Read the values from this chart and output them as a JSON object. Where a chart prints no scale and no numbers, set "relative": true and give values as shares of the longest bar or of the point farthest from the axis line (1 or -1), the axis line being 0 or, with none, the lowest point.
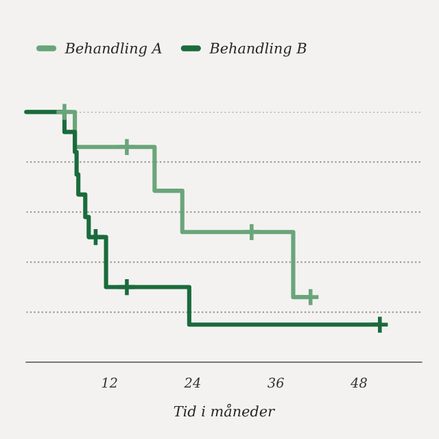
{
  "chart_data": {
    "type": "step",
    "xlabel": "Tid i måneder",
    "relative": true,
    "series": [
      {
        "name": "Behandling A",
        "color": "#6aa57a",
        "x": [
          0,
          7,
          18.5,
          22.5,
          38.5,
          41
        ],
        "values": [
          1,
          0.86,
          0.685,
          0.52,
          0.26,
          0.26
        ]
      },
      {
        "name": "Behandling B",
        "color": "#1a6b3c",
        "x": [
          0,
          5.5,
          7,
          7.25,
          7.5,
          8.5,
          9,
          11.5,
          23.5,
          51
        ],
        "values": [
          1,
          0.92,
          0.84,
          0.75,
          0.67,
          0.58,
          0.5,
          0.3,
          0.15,
          0.15
        ]
      },
      {
        "type": "scatter",
        "marker": "cross",
        "color": "#6aa57a",
        "x": [
          5.5,
          14.5,
          32.5,
          41
        ],
        "values": [
          1,
          0.86,
          0.52,
          0.26
        ]
      },
      {
        "type": "scatter",
        "marker": "cross",
        "color": "#1a6b3c",
        "x": [
          10,
          14.5,
          51
        ],
        "values": [
          0.5,
          0.3,
          0.15
        ]
      }
    ],
    "xlim": [
      0,
      57
    ],
    "xticks": [
      12,
      24,
      36,
      48
    ],
    "grid": "y",
    "legend": "top left",
    "tick_labels": "x"
  }
}
